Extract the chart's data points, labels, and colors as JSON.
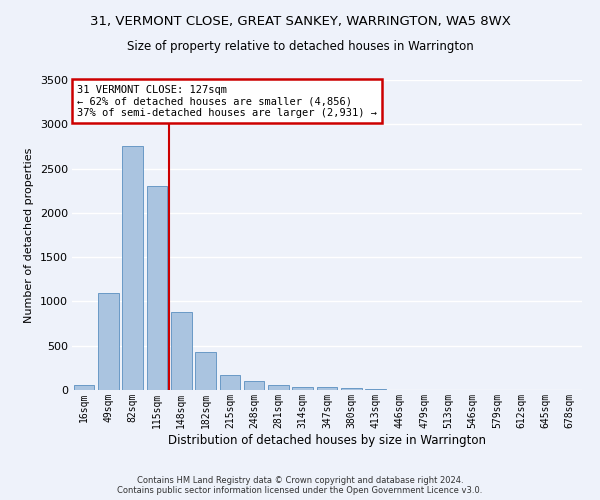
{
  "title_line1": "31, VERMONT CLOSE, GREAT SANKEY, WARRINGTON, WA5 8WX",
  "title_line2": "Size of property relative to detached houses in Warrington",
  "xlabel": "Distribution of detached houses by size in Warrington",
  "ylabel": "Number of detached properties",
  "footer_line1": "Contains HM Land Registry data © Crown copyright and database right 2024.",
  "footer_line2": "Contains public sector information licensed under the Open Government Licence v3.0.",
  "bar_labels": [
    "16sqm",
    "49sqm",
    "82sqm",
    "115sqm",
    "148sqm",
    "182sqm",
    "215sqm",
    "248sqm",
    "281sqm",
    "314sqm",
    "347sqm",
    "380sqm",
    "413sqm",
    "446sqm",
    "479sqm",
    "513sqm",
    "546sqm",
    "579sqm",
    "612sqm",
    "645sqm",
    "678sqm"
  ],
  "bar_values": [
    55,
    1100,
    2750,
    2300,
    880,
    430,
    165,
    105,
    60,
    30,
    35,
    20,
    10,
    5,
    3,
    2,
    1,
    1,
    1,
    0,
    0
  ],
  "bar_color": "#aac4e0",
  "bar_edgecolor": "#5a8fc0",
  "ylim": [
    0,
    3500
  ],
  "yticks": [
    0,
    500,
    1000,
    1500,
    2000,
    2500,
    3000,
    3500
  ],
  "vline_bin_index": 3,
  "annotation_text_line1": "31 VERMONT CLOSE: 127sqm",
  "annotation_text_line2": "← 62% of detached houses are smaller (4,856)",
  "annotation_text_line3": "37% of semi-detached houses are larger (2,931) →",
  "bg_color": "#eef2fa",
  "grid_color": "#ffffff",
  "annotation_box_color": "#ffffff",
  "annotation_box_edgecolor": "#cc0000",
  "vline_color": "#cc0000"
}
